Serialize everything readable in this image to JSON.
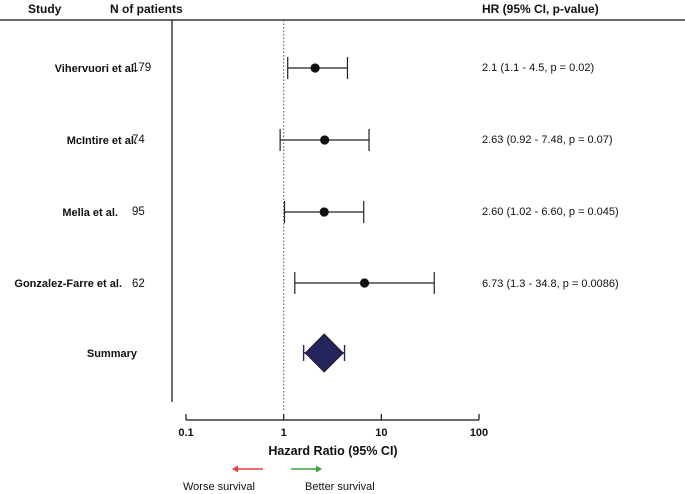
{
  "header": {
    "study": "Study",
    "patients": "N of patients",
    "hr": "HR (95% CI, p-value)"
  },
  "chart_data": {
    "type": "forest",
    "scale": "log",
    "xlim": [
      0.1,
      100
    ],
    "xticks": [
      0.1,
      1,
      10,
      100
    ],
    "xtick_labels": [
      "0.1",
      "1",
      "10",
      "100"
    ],
    "reference_line": 1,
    "xlabel": "Hazard Ratio (95% CI)",
    "studies": [
      {
        "name": "Vihervuori et al.",
        "n": "179",
        "hr": 2.1,
        "lo": 1.1,
        "hi": 4.5,
        "label": "2.1 (1.1 - 4.5, p = 0.02)"
      },
      {
        "name": "McIntire et al.",
        "n": "74",
        "hr": 2.63,
        "lo": 0.92,
        "hi": 7.48,
        "label": "2.63 (0.92 - 7.48, p = 0.07)"
      },
      {
        "name": "Mella et al.",
        "n": "95",
        "hr": 2.6,
        "lo": 1.02,
        "hi": 6.6,
        "label": "2.60 (1.02 - 6.60, p = 0.045)"
      },
      {
        "name": "Gonzalez-Farre et al.",
        "n": "62",
        "hr": 6.73,
        "lo": 1.3,
        "hi": 34.8,
        "label": "6.73 (1.3 - 34.8, p = 0.0086)"
      }
    ],
    "summary": {
      "name": "Summary",
      "hr": 2.6,
      "lo": 1.6,
      "hi": 4.2,
      "color": "#25255e"
    },
    "legend": {
      "worse": {
        "text": "Worse survival",
        "color": "#e0443a"
      },
      "better": {
        "text": "Better survival",
        "color": "#3aa33a"
      }
    }
  }
}
